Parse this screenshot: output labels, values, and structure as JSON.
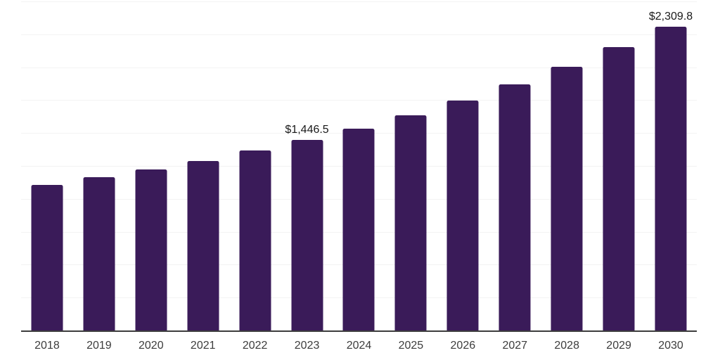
{
  "chart": {
    "background_color": "#ffffff",
    "bar_color": "#3A1B59",
    "grid_color": "#F3F3F3",
    "axis_color": "#3D3D3D",
    "value_label_color": "#1A1A1A",
    "tick_label_color": "#3C3C3C"
  },
  "chart_data": {
    "type": "bar",
    "title": "",
    "xlabel": "",
    "ylabel": "",
    "categories": [
      "2018",
      "2019",
      "2020",
      "2021",
      "2022",
      "2023",
      "2024",
      "2025",
      "2026",
      "2027",
      "2028",
      "2029",
      "2030"
    ],
    "values": [
      1106,
      1164,
      1222,
      1285,
      1368,
      1446.5,
      1536,
      1635,
      1745,
      1868,
      2005,
      2151,
      2309.8
    ],
    "data_labels": [
      "",
      "",
      "",
      "",
      "",
      "$1,446.5",
      "",
      "",
      "",
      "",
      "",
      "",
      "$2,309.8"
    ],
    "ylim": [
      0,
      2500
    ],
    "gridline_step": 250,
    "grid": true,
    "legend": false,
    "y_axis_ticks_visible": false,
    "value_label_format": "$#,###.#"
  }
}
